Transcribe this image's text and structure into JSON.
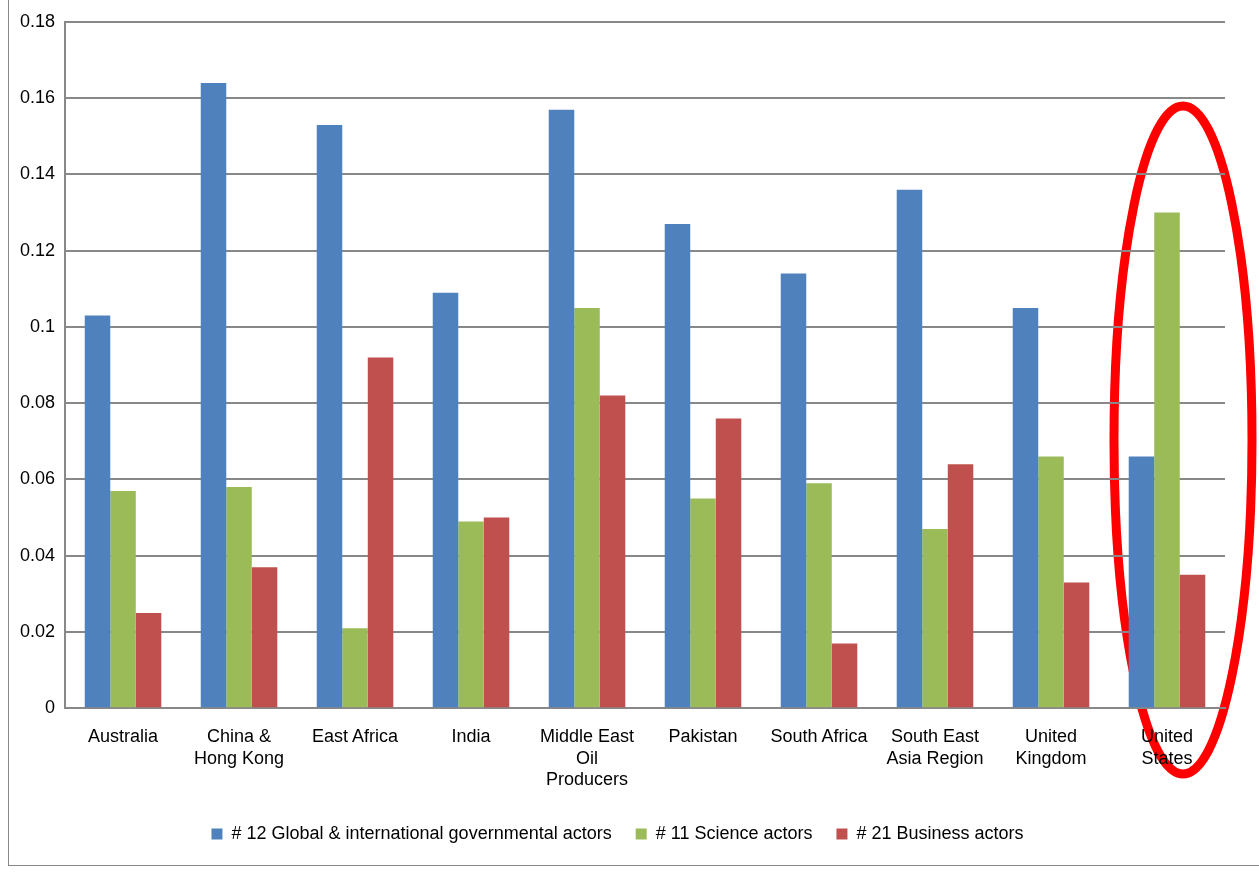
{
  "chart_data": {
    "type": "bar",
    "categories": [
      "Australia",
      "China & Hong Kong",
      "East Africa",
      "India",
      "Middle East Oil Producers",
      "Pakistan",
      "South Africa",
      "South East Asia Region",
      "United Kingdom",
      "United States"
    ],
    "series": [
      {
        "name": "# 12 Global & international governmental actors",
        "color": "#4f81bd",
        "values": [
          0.103,
          0.164,
          0.153,
          0.109,
          0.157,
          0.127,
          0.114,
          0.136,
          0.105,
          0.066
        ]
      },
      {
        "name": "# 11 Science actors",
        "color": "#9bbb59",
        "values": [
          0.057,
          0.058,
          0.021,
          0.049,
          0.105,
          0.055,
          0.059,
          0.047,
          0.066,
          0.13
        ]
      },
      {
        "name": "# 21 Business actors",
        "color": "#c0504d",
        "values": [
          0.025,
          0.037,
          0.092,
          0.05,
          0.082,
          0.076,
          0.017,
          0.064,
          0.033,
          0.035
        ]
      }
    ],
    "ylim": [
      0,
      0.18
    ],
    "yticks": [
      0,
      0.02,
      0.04,
      0.06,
      0.08,
      {
        "value": 0.1,
        "label": "0.1"
      },
      0.12,
      0.14,
      0.16,
      0.18
    ],
    "grid": "y",
    "legend": "bottom"
  }
}
